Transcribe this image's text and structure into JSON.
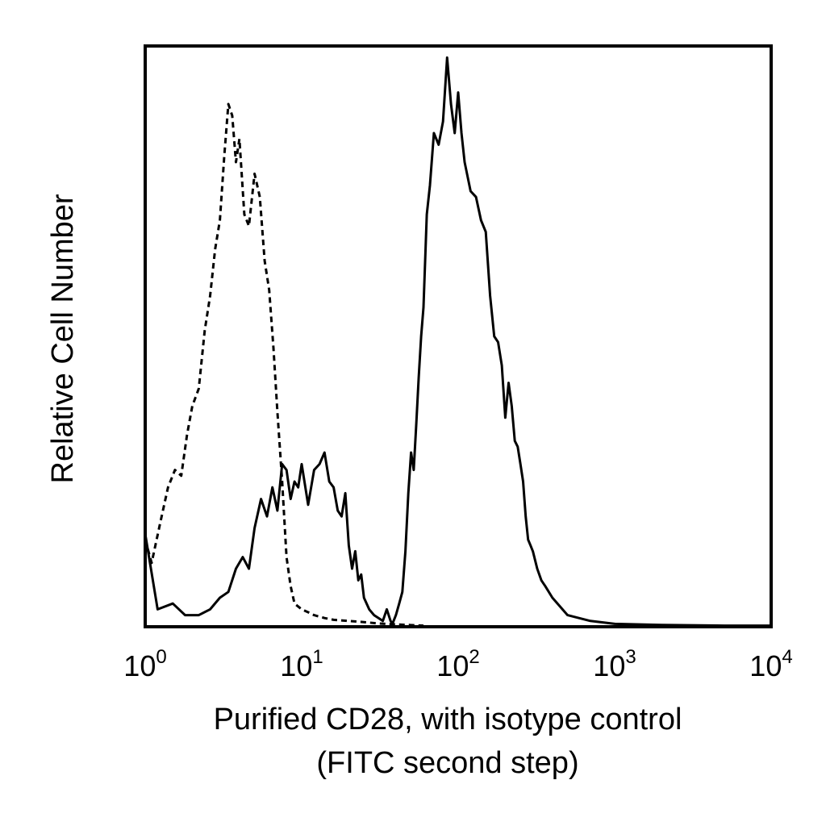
{
  "chart_data": {
    "type": "line",
    "title": "",
    "xlabel": "Purified CD28, with isotype control",
    "xlabel_line2": "(FITC second step)",
    "ylabel": "Relative Cell Number",
    "xscale": "log",
    "xlim": [
      1,
      10000
    ],
    "ylim": [
      0,
      100
    ],
    "grid": false,
    "legend": "none",
    "x_tick_labels": [
      {
        "value": 1,
        "base": "10",
        "exp": "0"
      },
      {
        "value": 10,
        "base": "10",
        "exp": "1"
      },
      {
        "value": 100,
        "base": "10",
        "exp": "2"
      },
      {
        "value": 1000,
        "base": "10",
        "exp": "3"
      },
      {
        "value": 10000,
        "base": "10",
        "exp": "4"
      }
    ],
    "series": [
      {
        "style": "dashed",
        "color": "#000000",
        "x": [
          1.0,
          1.1,
          1.25,
          1.4,
          1.55,
          1.7,
          1.85,
          2.0,
          2.2,
          2.4,
          2.6,
          2.8,
          3.0,
          3.2,
          3.4,
          3.6,
          3.8,
          4.0,
          4.3,
          4.6,
          5.0,
          5.4,
          5.8,
          6.2,
          6.6,
          7.0,
          7.5,
          8.0,
          8.5,
          9.0,
          10,
          11,
          12,
          14,
          16,
          20,
          25,
          30,
          40,
          60
        ],
        "y": [
          15,
          11,
          18,
          24,
          27,
          26,
          33,
          38,
          41,
          51,
          57,
          65,
          70,
          81,
          90,
          88,
          80,
          84,
          71,
          69,
          78,
          74,
          63,
          58,
          48,
          37,
          25,
          12,
          7,
          4,
          3,
          2.5,
          2,
          1.5,
          1.2,
          1,
          0.8,
          0.6,
          0.4,
          0.2
        ]
      },
      {
        "style": "solid",
        "color": "#000000",
        "x": [
          1.0,
          1.2,
          1.5,
          1.8,
          2.2,
          2.6,
          3.0,
          3.4,
          3.8,
          4.2,
          4.6,
          5.0,
          5.5,
          6.0,
          6.5,
          7.0,
          7.5,
          8.0,
          8.5,
          9.0,
          9.5,
          10,
          11,
          12,
          13,
          14,
          15,
          16,
          17,
          18,
          19,
          20,
          21,
          22,
          23,
          24,
          25,
          27,
          29,
          31,
          33,
          35,
          37,
          38,
          40,
          42,
          44,
          46,
          48,
          50,
          52,
          54,
          56,
          58,
          60,
          63,
          66,
          70,
          75,
          80,
          85,
          90,
          95,
          100,
          105,
          110,
          120,
          130,
          140,
          150,
          160,
          170,
          180,
          190,
          200,
          210,
          220,
          230,
          240,
          250,
          260,
          270,
          280,
          290,
          300,
          320,
          340,
          360,
          400,
          500,
          700,
          1000,
          2000,
          5000,
          10000
        ],
        "y": [
          16,
          3,
          4,
          2,
          2,
          3,
          5,
          6,
          10,
          12,
          10,
          17,
          22,
          19,
          24,
          20,
          28,
          27,
          22,
          25,
          24,
          28,
          21,
          27,
          28,
          30,
          25,
          24,
          20,
          19,
          23,
          14,
          10,
          13,
          8,
          9,
          5,
          3,
          2,
          1.5,
          1,
          3,
          1,
          0.5,
          2,
          4,
          6,
          13,
          23,
          30,
          27,
          35,
          43,
          50,
          55,
          71,
          76,
          85,
          83,
          87,
          98,
          90,
          85,
          92,
          85,
          80,
          75,
          74,
          70,
          68,
          57,
          50,
          49,
          45,
          36,
          42,
          38,
          32,
          31,
          28,
          25,
          19,
          15,
          14,
          13,
          10,
          8,
          7,
          5,
          2,
          1,
          0.5,
          0.3,
          0.2,
          0.2
        ]
      }
    ]
  }
}
